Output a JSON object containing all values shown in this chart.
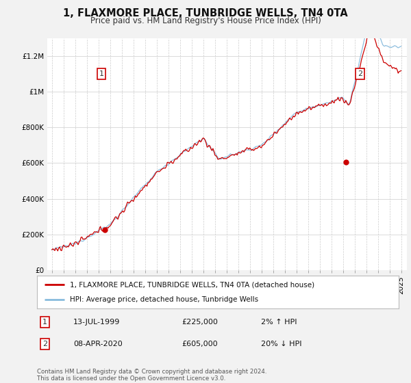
{
  "title": "1, FLAXMORE PLACE, TUNBRIDGE WELLS, TN4 0TA",
  "subtitle": "Price paid vs. HM Land Registry's House Price Index (HPI)",
  "legend_line1": "1, FLAXMORE PLACE, TUNBRIDGE WELLS, TN4 0TA (detached house)",
  "legend_line2": "HPI: Average price, detached house, Tunbridge Wells",
  "sale1_date": "13-JUL-1999",
  "sale1_price": "£225,000",
  "sale1_hpi": "2% ↑ HPI",
  "sale1_year": 1999.54,
  "sale1_value": 225000,
  "sale2_date": "08-APR-2020",
  "sale2_price": "£605,000",
  "sale2_hpi": "20% ↓ HPI",
  "sale2_year": 2020.27,
  "sale2_value": 605000,
  "ylim": [
    0,
    1300000
  ],
  "yticks": [
    0,
    200000,
    400000,
    600000,
    800000,
    1000000,
    1200000
  ],
  "ytick_labels": [
    "£0",
    "£200K",
    "£400K",
    "£600K",
    "£800K",
    "£1M",
    "£1.2M"
  ],
  "line_color_red": "#cc0000",
  "line_color_blue": "#88bbdd",
  "dot_color_red": "#cc0000",
  "background_color": "#f2f2f2",
  "plot_bg_color": "#ffffff",
  "footer": "Contains HM Land Registry data © Crown copyright and database right 2024.\nThis data is licensed under the Open Government Licence v3.0.",
  "title_fontsize": 10.5,
  "subtitle_fontsize": 8.5,
  "tick_fontsize": 7.5
}
